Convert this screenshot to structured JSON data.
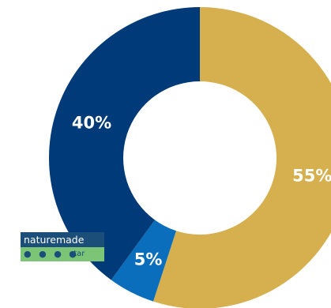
{
  "chart_data": {
    "type": "pie",
    "variant": "donut",
    "slices": [
      {
        "label": "55%",
        "value": 55,
        "color": "#d6b04e"
      },
      {
        "label": "5%",
        "value": 5,
        "color": "#0a6ebd"
      },
      {
        "label": "40%",
        "value": 40,
        "color": "#003a78"
      }
    ],
    "start": "top",
    "direction": "clockwise",
    "legend": "none"
  },
  "logo": {
    "line1": "naturemade",
    "line2_dots": "● ● ● ●",
    "line2_text": "star"
  }
}
